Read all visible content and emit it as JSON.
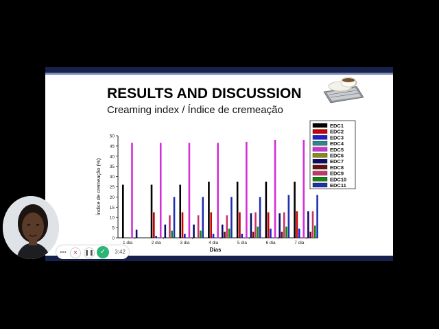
{
  "slide": {
    "title": "RESULTS AND DISCUSSION",
    "subtitle": "Creaming index / Índice de cremeação"
  },
  "recorder": {
    "menu_icon": "ellipsis-icon",
    "discard_icon": "close-icon",
    "pause_icon": "pause-icon",
    "stop_icon": "check-icon",
    "timer": "3:42"
  },
  "colors": {
    "slide_band": "#16224c",
    "record_button": "#2bb673"
  },
  "chart_data": {
    "type": "bar",
    "xlabel": "Dias",
    "ylabel": "Índice de cremeação (%)",
    "ylim": [
      0,
      50
    ],
    "yticks": [
      0,
      5,
      10,
      15,
      20,
      25,
      30,
      35,
      40,
      45,
      50
    ],
    "categories": [
      "1 dia",
      "2 dia",
      "3 dia",
      "4 dia",
      "5 dia",
      "6 dia",
      "7 dia"
    ],
    "legend_position": "top-right",
    "grid": false,
    "series": [
      {
        "name": "EDC1",
        "color": "#000000",
        "values": [
          26,
          26,
          26,
          27.5,
          27.5,
          27.5,
          27.5
        ]
      },
      {
        "name": "EDC2",
        "color": "#cc0000",
        "values": [
          0,
          12.5,
          12.5,
          12.5,
          12.5,
          12.5,
          13
        ]
      },
      {
        "name": "EDC3",
        "color": "#1d1dd6",
        "values": [
          0,
          1,
          2,
          2,
          2,
          4.5,
          4.5
        ]
      },
      {
        "name": "EDC4",
        "color": "#2a8a8a",
        "values": [
          0,
          0,
          0,
          0,
          0,
          0,
          0
        ]
      },
      {
        "name": "EDC5",
        "color": "#d22fd8",
        "values": [
          46.5,
          46.5,
          46.5,
          46.5,
          47,
          48,
          48
        ]
      },
      {
        "name": "EDC6",
        "color": "#8a8a1e",
        "values": [
          0,
          0,
          0,
          0,
          0,
          0,
          0
        ]
      },
      {
        "name": "EDC7",
        "color": "#0c0c66",
        "values": [
          4,
          6.5,
          6.5,
          6.5,
          12,
          12,
          13
        ]
      },
      {
        "name": "EDC8",
        "color": "#661111",
        "values": [
          0,
          0,
          0,
          3,
          3,
          3,
          3
        ]
      },
      {
        "name": "EDC9",
        "color": "#c8336a",
        "values": [
          0,
          11,
          11,
          11,
          12.5,
          12.5,
          13
        ]
      },
      {
        "name": "EDC10",
        "color": "#0e8a0e",
        "values": [
          0,
          3.5,
          3.5,
          4.5,
          5.5,
          5.5,
          6
        ]
      },
      {
        "name": "EDC11",
        "color": "#1f2fae",
        "values": [
          0,
          20,
          20,
          20,
          20,
          21,
          21
        ]
      }
    ]
  }
}
